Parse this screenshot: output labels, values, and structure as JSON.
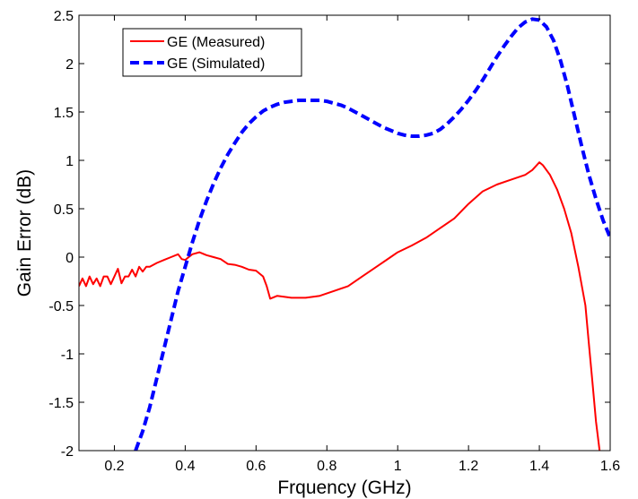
{
  "chart_data": {
    "type": "line",
    "title": "",
    "xlabel": "Frquency (GHz)",
    "ylabel": "Gain Error (dB)",
    "xlim": [
      0.1,
      1.6
    ],
    "ylim": [
      -2,
      2.5
    ],
    "xticks": [
      "0.2",
      "0.4",
      "0.6",
      "0.8",
      "1",
      "1.2",
      "1.4",
      "1.6"
    ],
    "yticks": [
      "-2",
      "-1.5",
      "-1",
      "-0.5",
      "0",
      "0.5",
      "1",
      "1.5",
      "2",
      "2.5"
    ],
    "grid": false,
    "legend_position": "top-left",
    "series": [
      {
        "name": "GE (Measured)",
        "color": "#ff0000",
        "line_style": "solid",
        "x": [
          0.1,
          0.11,
          0.12,
          0.13,
          0.14,
          0.15,
          0.16,
          0.17,
          0.18,
          0.19,
          0.2,
          0.21,
          0.22,
          0.23,
          0.24,
          0.25,
          0.26,
          0.27,
          0.28,
          0.29,
          0.3,
          0.32,
          0.34,
          0.36,
          0.38,
          0.39,
          0.4,
          0.41,
          0.42,
          0.44,
          0.46,
          0.48,
          0.5,
          0.52,
          0.54,
          0.56,
          0.58,
          0.6,
          0.62,
          0.63,
          0.64,
          0.66,
          0.7,
          0.74,
          0.78,
          0.82,
          0.86,
          0.9,
          0.94,
          0.98,
          1.0,
          1.04,
          1.08,
          1.12,
          1.16,
          1.2,
          1.24,
          1.28,
          1.32,
          1.36,
          1.38,
          1.4,
          1.41,
          1.43,
          1.45,
          1.47,
          1.49,
          1.51,
          1.53,
          1.54,
          1.55,
          1.56,
          1.57
        ],
        "y": [
          -0.3,
          -0.22,
          -0.3,
          -0.2,
          -0.28,
          -0.22,
          -0.3,
          -0.2,
          -0.2,
          -0.28,
          -0.2,
          -0.12,
          -0.27,
          -0.2,
          -0.2,
          -0.13,
          -0.2,
          -0.1,
          -0.15,
          -0.1,
          -0.1,
          -0.06,
          -0.03,
          0.0,
          0.03,
          -0.02,
          -0.03,
          0.0,
          0.03,
          0.05,
          0.02,
          0.0,
          -0.02,
          -0.07,
          -0.08,
          -0.1,
          -0.13,
          -0.14,
          -0.2,
          -0.3,
          -0.43,
          -0.4,
          -0.42,
          -0.42,
          -0.4,
          -0.35,
          -0.3,
          -0.2,
          -0.1,
          0.0,
          0.05,
          0.12,
          0.2,
          0.3,
          0.4,
          0.55,
          0.68,
          0.75,
          0.8,
          0.85,
          0.9,
          0.98,
          0.95,
          0.85,
          0.7,
          0.5,
          0.25,
          -0.1,
          -0.5,
          -0.9,
          -1.3,
          -1.7,
          -2.0
        ]
      },
      {
        "name": "GE (Simulated)",
        "color": "#0000ff",
        "line_style": "dashed",
        "x": [
          0.26,
          0.28,
          0.3,
          0.32,
          0.34,
          0.36,
          0.38,
          0.4,
          0.42,
          0.44,
          0.46,
          0.48,
          0.5,
          0.52,
          0.54,
          0.56,
          0.58,
          0.6,
          0.62,
          0.64,
          0.66,
          0.68,
          0.7,
          0.72,
          0.74,
          0.76,
          0.78,
          0.8,
          0.82,
          0.84,
          0.86,
          0.88,
          0.9,
          0.92,
          0.94,
          0.96,
          0.98,
          1.0,
          1.02,
          1.04,
          1.06,
          1.08,
          1.1,
          1.12,
          1.14,
          1.16,
          1.18,
          1.2,
          1.22,
          1.24,
          1.26,
          1.28,
          1.3,
          1.32,
          1.34,
          1.36,
          1.38,
          1.4,
          1.42,
          1.44,
          1.46,
          1.48,
          1.5,
          1.52,
          1.54,
          1.56,
          1.58,
          1.6
        ],
        "y": [
          -2.0,
          -1.8,
          -1.55,
          -1.25,
          -0.95,
          -0.65,
          -0.35,
          -0.1,
          0.15,
          0.38,
          0.58,
          0.76,
          0.92,
          1.06,
          1.18,
          1.29,
          1.38,
          1.45,
          1.51,
          1.55,
          1.58,
          1.6,
          1.61,
          1.62,
          1.62,
          1.62,
          1.62,
          1.61,
          1.59,
          1.57,
          1.54,
          1.5,
          1.46,
          1.42,
          1.38,
          1.34,
          1.31,
          1.28,
          1.26,
          1.25,
          1.25,
          1.26,
          1.28,
          1.32,
          1.38,
          1.45,
          1.53,
          1.62,
          1.72,
          1.83,
          1.95,
          2.07,
          2.18,
          2.28,
          2.37,
          2.43,
          2.46,
          2.45,
          2.38,
          2.24,
          2.03,
          1.76,
          1.45,
          1.14,
          0.85,
          0.6,
          0.38,
          0.2
        ]
      }
    ]
  }
}
